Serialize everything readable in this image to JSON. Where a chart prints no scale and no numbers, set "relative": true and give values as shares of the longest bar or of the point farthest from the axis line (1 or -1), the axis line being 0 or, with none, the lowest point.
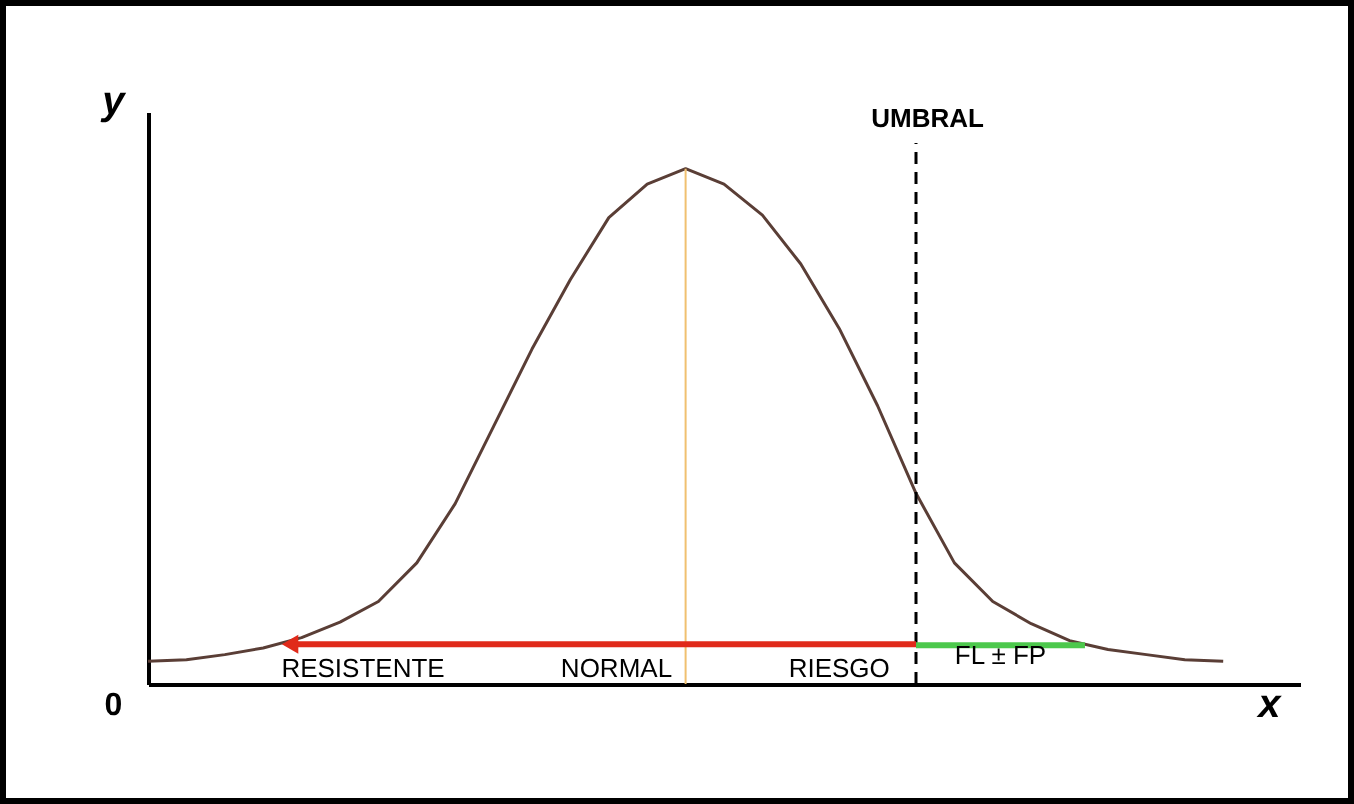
{
  "chart_data": {
    "type": "line",
    "relative": true,
    "xlabel": "x",
    "ylabel": "y",
    "categories": [
      null,
      null,
      null,
      null,
      null,
      null,
      null,
      null,
      null,
      null,
      null,
      null,
      null,
      null,
      null,
      null,
      null,
      null,
      null,
      null,
      null,
      null,
      null,
      null,
      null,
      null,
      null,
      null,
      null,
      null,
      null
    ],
    "series": [
      {
        "color": "#5a3e36",
        "values": [
          0.044,
          0.047,
          0.057,
          0.07,
          0.09,
          0.12,
          0.16,
          0.235,
          0.35,
          0.5,
          0.65,
          0.785,
          0.905,
          0.97,
          1,
          0.97,
          0.91,
          0.815,
          0.69,
          0.54,
          0.37,
          0.235,
          0.16,
          0.117,
          0.084,
          0.067,
          0.057,
          0.047,
          0.044,
          null,
          null
        ]
      }
    ],
    "annotations": [
      "UMBRAL",
      "RESISTENTE",
      "NORMAL",
      "RIESGO",
      "FL ± FP",
      "0"
    ],
    "tick_labels": false
  }
}
